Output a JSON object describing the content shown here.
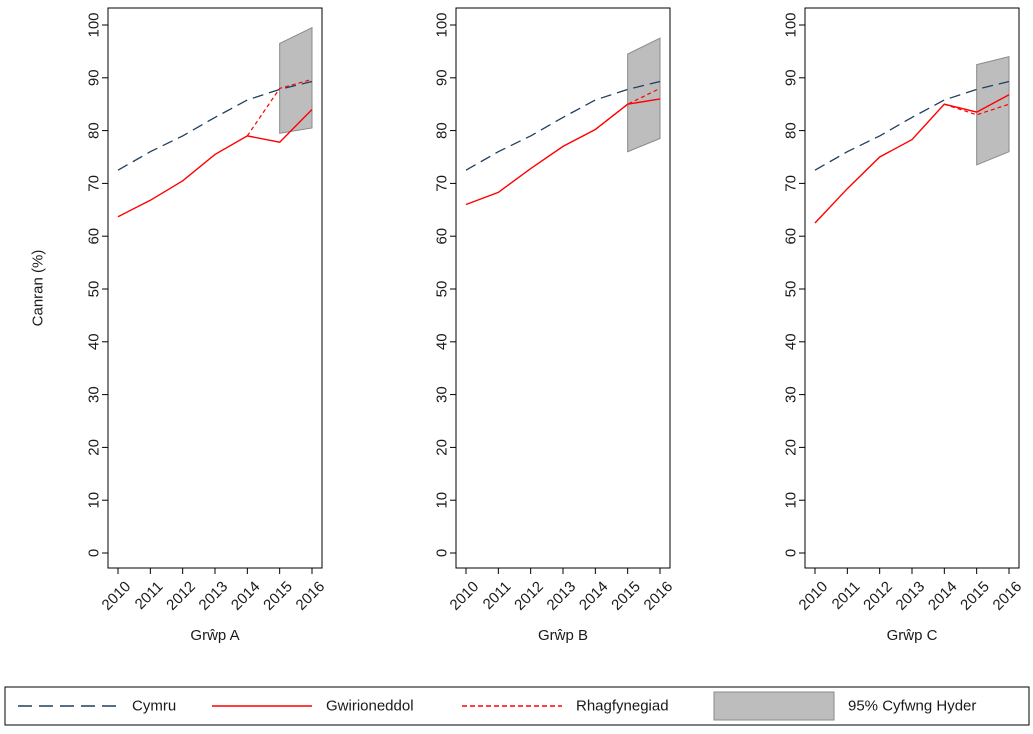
{
  "chart_data": {
    "type": "line",
    "ylabel": "Canran (%)",
    "ylim": [
      0,
      100
    ],
    "yticks": [
      0,
      10,
      20,
      30,
      40,
      50,
      60,
      70,
      80,
      90,
      100
    ],
    "categories": [
      "2010",
      "2011",
      "2012",
      "2013",
      "2014",
      "2015",
      "2016"
    ],
    "legend": {
      "placement": "bottom",
      "items": [
        {
          "key": "cymru",
          "label": "Cymru"
        },
        {
          "key": "actual",
          "label": "Gwirioneddol"
        },
        {
          "key": "forecast",
          "label": "Rhagfynegiad"
        },
        {
          "key": "ci",
          "label": "95% Cyfwng Hyder"
        }
      ]
    },
    "colors": {
      "cymru": "#1f3f5f",
      "actual": "#ff0000",
      "forecast": "#ff0000",
      "ci": "#bdbdbd",
      "ci_edge": "#8a8a8a"
    },
    "panels": [
      {
        "xlabel": "Grŵp A",
        "series": [
          {
            "name": "Cymru",
            "values": [
              72.5,
              76,
              79,
              82.5,
              85.8,
              87.8,
              89.3
            ]
          },
          {
            "name": "Gwirioneddol",
            "values": [
              63.7,
              66.8,
              70.5,
              75.5,
              79.0,
              77.8,
              84.0
            ]
          },
          {
            "name": "Rhagfynegiad",
            "x": [
              "2014",
              "2015",
              "2016"
            ],
            "values": [
              79.0,
              88.0,
              89.7
            ]
          }
        ],
        "ci": {
          "x": [
            "2015",
            "2016"
          ],
          "lower": [
            79.5,
            80.5
          ],
          "upper": [
            96.5,
            99.5
          ]
        }
      },
      {
        "xlabel": "Grŵp B",
        "series": [
          {
            "name": "Cymru",
            "values": [
              72.5,
              76,
              79,
              82.5,
              85.8,
              87.8,
              89.3
            ]
          },
          {
            "name": "Gwirioneddol",
            "values": [
              66.0,
              68.3,
              72.8,
              77.0,
              80.2,
              85.0,
              86.0
            ]
          },
          {
            "name": "Rhagfynegiad",
            "x": [
              "2014",
              "2015",
              "2016"
            ],
            "values": [
              80.2,
              85.0,
              88.0
            ]
          }
        ],
        "ci": {
          "x": [
            "2015",
            "2016"
          ],
          "lower": [
            76.0,
            78.5
          ],
          "upper": [
            94.5,
            97.5
          ]
        }
      },
      {
        "xlabel": "Grŵp C",
        "series": [
          {
            "name": "Cymru",
            "values": [
              72.5,
              76,
              79,
              82.5,
              85.8,
              87.8,
              89.3
            ]
          },
          {
            "name": "Gwirioneddol",
            "values": [
              62.5,
              69.0,
              75.0,
              78.3,
              85.0,
              83.5,
              86.8
            ]
          },
          {
            "name": "Rhagfynegiad",
            "x": [
              "2014",
              "2015",
              "2016"
            ],
            "values": [
              85.0,
              83.0,
              85.0
            ]
          }
        ],
        "ci": {
          "x": [
            "2015",
            "2016"
          ],
          "lower": [
            73.5,
            76.0
          ],
          "upper": [
            92.5,
            94.0
          ]
        }
      }
    ]
  }
}
